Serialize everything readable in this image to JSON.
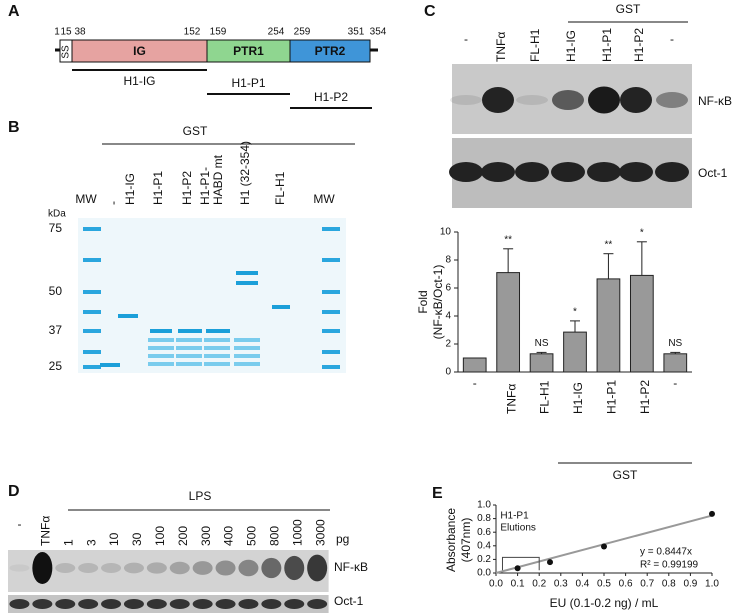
{
  "panels": {
    "A": {
      "label": "A",
      "positions": [
        1,
        15,
        38,
        152,
        159,
        254,
        259,
        351,
        354
      ],
      "domains": [
        "SS",
        "IG",
        "PTR1",
        "PTR2"
      ],
      "constructs": [
        "H1-IG",
        "H1-P1",
        "H1-P2"
      ]
    },
    "B": {
      "label": "B",
      "group": "GST",
      "lanes": [
        "MW",
        "-",
        "H1-IG",
        "H1-P1",
        "H1-P2",
        [
          "H1-P1-",
          "HABD mt"
        ],
        "H1 (32-354)",
        "FL-H1",
        "MW"
      ],
      "kda_title": "kDa",
      "kda": [
        75,
        50,
        37,
        25
      ]
    },
    "C": {
      "label": "C",
      "group": "GST",
      "lanes": [
        "-",
        "TNFα",
        "FL-H1",
        "H1-IG",
        "H1-P1",
        "H1-P2",
        "-"
      ],
      "blots": [
        "NF-κB",
        "Oct-1"
      ]
    },
    "D": {
      "label": "D",
      "group": "LPS",
      "lanes": [
        "-",
        "TNFα",
        "1",
        "3",
        "10",
        "30",
        "100",
        "200",
        "300",
        "400",
        "500",
        "800",
        "1000",
        "3000"
      ],
      "unit": "pg",
      "blots": [
        "NF-κB",
        "Oct-1"
      ]
    },
    "E": {
      "label": "E"
    }
  },
  "chart_data": [
    {
      "type": "bar",
      "ylabel": [
        "Fold",
        "(NF-κB/Oct-1)"
      ],
      "categories": [
        "-",
        "TNFα",
        "FL-H1",
        "H1-IG",
        "H1-P1",
        "H1-P2",
        "-"
      ],
      "values": [
        1,
        7.1,
        1.3,
        2.85,
        6.65,
        6.9,
        1.3
      ],
      "errors": [
        0,
        1.7,
        0.1,
        0.8,
        1.8,
        2.4,
        0.1
      ],
      "significance": [
        null,
        "**",
        "NS",
        "*",
        "**",
        "*",
        "NS"
      ],
      "group_label": "GST",
      "color": "#999999",
      "ylim": [
        0,
        10
      ],
      "yticks": [
        0,
        2,
        4,
        6,
        8,
        10
      ]
    },
    {
      "type": "scatter",
      "x": [
        0.1,
        0.25,
        0.5,
        1.0
      ],
      "y": [
        0.07,
        0.16,
        0.39,
        0.87
      ],
      "color": "#111111",
      "xlabel": "EU (0.1-0.2 ng) / mL",
      "ylabel": [
        "Absorbance",
        "(407nm)"
      ],
      "xlim": [
        0,
        1
      ],
      "ylim": [
        0,
        1
      ],
      "xticks": [
        {
          "value": 0,
          "label": "0.0"
        },
        0.1,
        0.2,
        0.3,
        0.4,
        0.5,
        0.6,
        0.7,
        0.8,
        0.9,
        {
          "value": 1,
          "label": "1.0"
        }
      ],
      "yticks": [
        {
          "value": 0,
          "label": "0.0"
        },
        0.2,
        0.4,
        0.6,
        0.8,
        {
          "value": 1,
          "label": "1.0"
        }
      ],
      "trendline": {
        "slope": 0.8447,
        "color": "#999999"
      },
      "annotations": {
        "bracket": [
          "H1-P1",
          "Elutions"
        ],
        "equation": "y = 0.8447x",
        "r2": "R² = 0.99199"
      }
    }
  ]
}
